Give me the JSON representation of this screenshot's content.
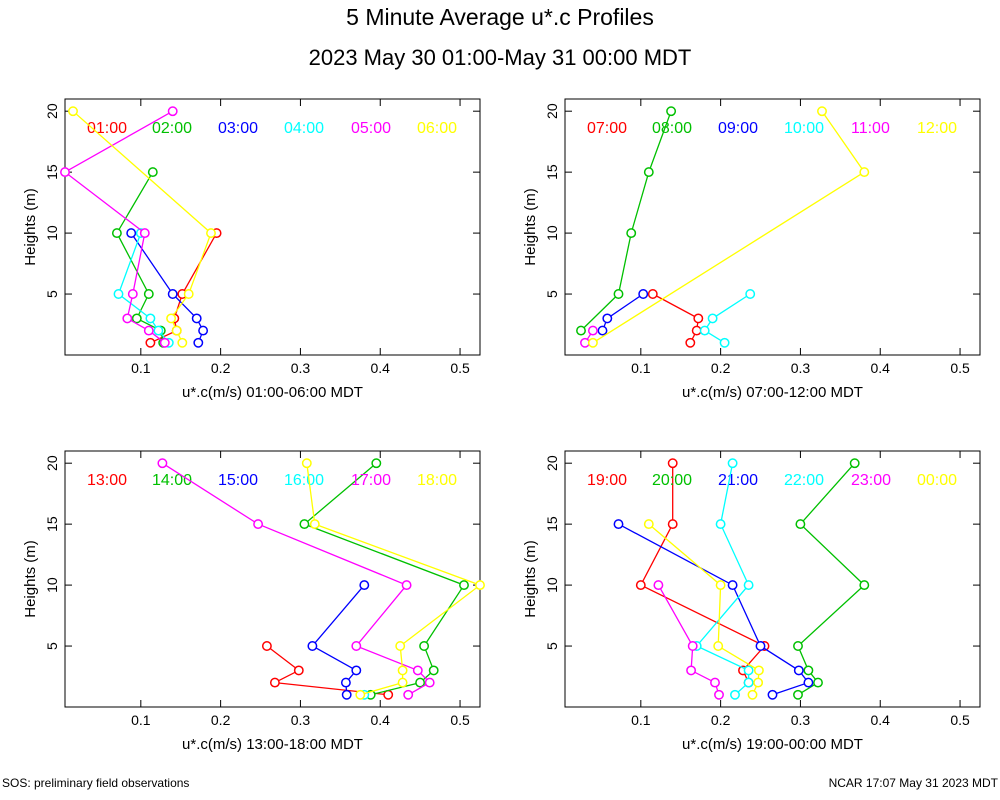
{
  "title": "5 Minute Average u*.c Profiles",
  "subtitle": "2023 May 30 01:00-May 31 00:00 MDT",
  "footer_left": "SOS: preliminary field observations",
  "footer_right": "NCAR 17:07 May 31 2023 MDT",
  "colors": [
    "#ff0000",
    "#00c000",
    "#0000ff",
    "#00ffff",
    "#ff00ff",
    "#ffff00"
  ],
  "chart_data": [
    {
      "type": "line",
      "xlabel": "u*.c(m/s) 01:00-06:00 MDT",
      "ylabel": "Heights (m)",
      "xlim": [
        0.005,
        0.525
      ],
      "ylim": [
        0,
        21
      ],
      "xticks": [
        "0.1",
        "0.2",
        "0.3",
        "0.4",
        "0.5"
      ],
      "yticks": [
        "5",
        "10",
        "15",
        "20"
      ],
      "series": [
        {
          "name": "01:00",
          "x": [
            0.112,
            0.145,
            0.142,
            0.152,
            0.195
          ],
          "y": [
            1,
            2,
            3,
            5,
            10
          ]
        },
        {
          "name": "02:00",
          "x": [
            0.128,
            0.125,
            0.095,
            0.11,
            0.07,
            0.115
          ],
          "y": [
            1,
            2,
            3,
            5,
            10,
            15
          ]
        },
        {
          "name": "03:00",
          "x": [
            0.172,
            0.178,
            0.17,
            0.14,
            0.088
          ],
          "y": [
            1,
            2,
            3,
            5,
            10
          ]
        },
        {
          "name": "04:00",
          "x": [
            0.135,
            0.122,
            0.112,
            0.072,
            0.1
          ],
          "y": [
            1,
            2,
            3,
            5,
            10
          ]
        },
        {
          "name": "05:00",
          "x": [
            0.13,
            0.11,
            0.083,
            0.09,
            0.105,
            0.005,
            0.14
          ],
          "y": [
            1,
            2,
            3,
            5,
            10,
            15,
            20
          ]
        },
        {
          "name": "06:00",
          "x": [
            0.152,
            0.145,
            0.138,
            0.16,
            0.188,
            0.015
          ],
          "y": [
            1,
            2,
            3,
            5,
            10,
            20
          ]
        }
      ]
    },
    {
      "type": "line",
      "xlabel": "u*.c(m/s) 07:00-12:00 MDT",
      "ylabel": "Heights (m)",
      "xlim": [
        0.005,
        0.525
      ],
      "ylim": [
        0,
        21
      ],
      "xticks": [
        "0.1",
        "0.2",
        "0.3",
        "0.4",
        "0.5"
      ],
      "yticks": [
        "5",
        "10",
        "15",
        "20"
      ],
      "series": [
        {
          "name": "07:00",
          "x": [
            0.162,
            0.17,
            0.172,
            0.115
          ],
          "y": [
            1,
            2,
            3,
            5
          ]
        },
        {
          "name": "08:00",
          "x": [
            0.025,
            0.072,
            0.088,
            0.11,
            0.138
          ],
          "y": [
            2,
            5,
            10,
            15,
            20
          ]
        },
        {
          "name": "09:00",
          "x": [
            0.052,
            0.058,
            0.103
          ],
          "y": [
            2,
            3,
            5
          ]
        },
        {
          "name": "10:00",
          "x": [
            0.205,
            0.18,
            0.19,
            0.237
          ],
          "y": [
            1,
            2,
            3,
            5
          ]
        },
        {
          "name": "11:00",
          "x": [
            0.03,
            0.04
          ],
          "y": [
            1,
            2
          ]
        },
        {
          "name": "12:00",
          "x": [
            0.04,
            0.38,
            0.327
          ],
          "y": [
            1,
            15,
            20
          ]
        }
      ]
    },
    {
      "type": "line",
      "xlabel": "u*.c(m/s) 13:00-18:00 MDT",
      "ylabel": "Heights (m)",
      "xlim": [
        0.005,
        0.525
      ],
      "ylim": [
        0,
        21
      ],
      "xticks": [
        "0.1",
        "0.2",
        "0.3",
        "0.4",
        "0.5"
      ],
      "yticks": [
        "5",
        "10",
        "15",
        "20"
      ],
      "series": [
        {
          "name": "13:00",
          "x": [
            0.41,
            0.268,
            0.298,
            0.258
          ],
          "y": [
            1,
            2,
            3,
            5
          ]
        },
        {
          "name": "14:00",
          "x": [
            0.388,
            0.45,
            0.467,
            0.455,
            0.505,
            0.305,
            0.395
          ],
          "y": [
            1,
            2,
            3,
            5,
            10,
            15,
            20
          ]
        },
        {
          "name": "15:00",
          "x": [
            0.358,
            0.357,
            0.37,
            0.315,
            0.38
          ],
          "y": [
            1,
            2,
            3,
            5,
            10
          ]
        },
        {
          "name": "16:00",
          "x": [
            0.38
          ],
          "y": [
            1
          ]
        },
        {
          "name": "17:00",
          "x": [
            0.435,
            0.462,
            0.447,
            0.37,
            0.433,
            0.247,
            0.127
          ],
          "y": [
            1,
            2,
            3,
            5,
            10,
            15,
            20
          ]
        },
        {
          "name": "18:00",
          "x": [
            0.375,
            0.428,
            0.428,
            0.425,
            0.525,
            0.318,
            0.308
          ],
          "y": [
            1,
            2,
            3,
            5,
            10,
            15,
            20
          ]
        }
      ]
    },
    {
      "type": "line",
      "xlabel": "u*.c(m/s) 19:00-00:00 MDT",
      "ylabel": "Heights (m)",
      "xlim": [
        0.005,
        0.525
      ],
      "ylim": [
        0,
        21
      ],
      "xticks": [
        "0.1",
        "0.2",
        "0.3",
        "0.4",
        "0.5"
      ],
      "yticks": [
        "5",
        "10",
        "15",
        "20"
      ],
      "series": [
        {
          "name": "19:00",
          "x": [
            0.235,
            0.228,
            0.255,
            0.1,
            0.14,
            0.14
          ],
          "y": [
            2,
            3,
            5,
            10,
            15,
            20
          ]
        },
        {
          "name": "20:00",
          "x": [
            0.297,
            0.322,
            0.31,
            0.297,
            0.38,
            0.3,
            0.368
          ],
          "y": [
            1,
            2,
            3,
            5,
            10,
            15,
            20
          ]
        },
        {
          "name": "21:00",
          "x": [
            0.265,
            0.31,
            0.298,
            0.25,
            0.215,
            0.072
          ],
          "y": [
            1,
            2,
            3,
            5,
            10,
            15
          ]
        },
        {
          "name": "22:00",
          "x": [
            0.218,
            0.235,
            0.235,
            0.17,
            0.235,
            0.2,
            0.215
          ],
          "y": [
            1,
            2,
            3,
            5,
            10,
            15,
            20
          ]
        },
        {
          "name": "23:00",
          "x": [
            0.198,
            0.193,
            0.163,
            0.165,
            0.122
          ],
          "y": [
            1,
            2,
            3,
            5,
            10
          ]
        },
        {
          "name": "00:00",
          "x": [
            0.24,
            0.247,
            0.248,
            0.197,
            0.2,
            0.11
          ],
          "y": [
            1,
            2,
            3,
            5,
            10,
            15
          ]
        }
      ]
    }
  ]
}
